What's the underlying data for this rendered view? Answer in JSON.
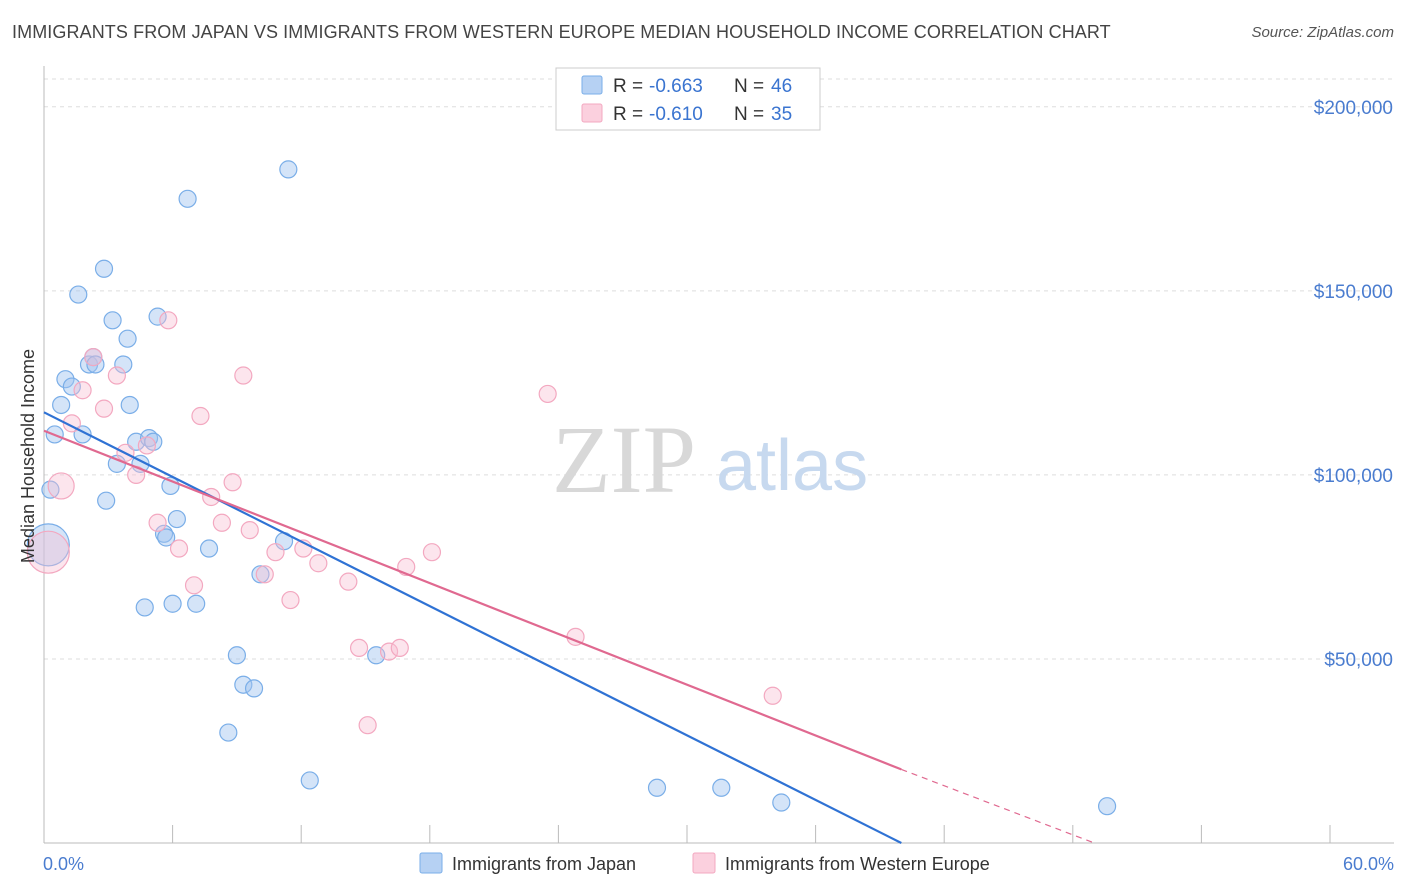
{
  "header": {
    "title": "IMMIGRANTS FROM JAPAN VS IMMIGRANTS FROM WESTERN EUROPE MEDIAN HOUSEHOLD INCOME CORRELATION CHART",
    "source": "Source: ZipAtlas.com"
  },
  "watermark": {
    "zip": "ZIP",
    "atlas": "atlas"
  },
  "colors": {
    "japan": "#7aaee8",
    "japan_line": "#2f72d4",
    "weurope": "#f3a8c0",
    "weurope_line": "#e06990",
    "grid": "#dddddd",
    "tick_text": "#4a7ccf"
  },
  "stats": {
    "r_label": "R =",
    "n_label": "N =",
    "japan": {
      "r": "-0.663",
      "n": "46"
    },
    "weurope": {
      "r": "-0.610",
      "n": "35"
    }
  },
  "chart_data": {
    "type": "scatter",
    "title": "IMMIGRANTS FROM JAPAN VS IMMIGRANTS FROM WESTERN EUROPE MEDIAN HOUSEHOLD INCOME CORRELATION CHART",
    "xlabel": "",
    "ylabel": "Median Household Income",
    "xlim": [
      0,
      60
    ],
    "ylim": [
      0,
      210000
    ],
    "x_tick_labels": [
      "0.0%",
      "60.0%"
    ],
    "y_ticks": [
      50000,
      100000,
      150000,
      200000
    ],
    "y_tick_labels": [
      "$50,000",
      "$100,000",
      "$150,000",
      "$200,000"
    ],
    "grid": true,
    "legend_position": "bottom-center",
    "series": [
      {
        "name": "Immigrants from Japan",
        "color": "#7aaee8",
        "r": -0.663,
        "n": 46,
        "trend": {
          "x": [
            0,
            40
          ],
          "y": [
            117000,
            0
          ]
        },
        "points": [
          [
            0.2,
            81000,
            3
          ],
          [
            0.3,
            96000,
            1
          ],
          [
            0.5,
            111000,
            1
          ],
          [
            0.8,
            119000,
            1
          ],
          [
            1.0,
            126000,
            1
          ],
          [
            1.3,
            124000,
            1
          ],
          [
            1.6,
            149000,
            1
          ],
          [
            1.8,
            111000,
            1
          ],
          [
            2.1,
            130000,
            1
          ],
          [
            2.3,
            132000,
            1
          ],
          [
            2.4,
            130000,
            1
          ],
          [
            2.8,
            156000,
            1
          ],
          [
            2.9,
            93000,
            1
          ],
          [
            3.2,
            142000,
            1
          ],
          [
            3.4,
            103000,
            1
          ],
          [
            3.7,
            130000,
            1
          ],
          [
            3.9,
            137000,
            1
          ],
          [
            4.0,
            119000,
            1
          ],
          [
            4.3,
            109000,
            1
          ],
          [
            4.5,
            103000,
            1
          ],
          [
            4.7,
            64000,
            1
          ],
          [
            4.9,
            110000,
            1
          ],
          [
            5.1,
            109000,
            1
          ],
          [
            5.3,
            143000,
            1
          ],
          [
            5.6,
            84000,
            1
          ],
          [
            5.7,
            83000,
            1
          ],
          [
            5.9,
            97000,
            1
          ],
          [
            6.0,
            65000,
            1
          ],
          [
            6.2,
            88000,
            1
          ],
          [
            6.7,
            175000,
            1
          ],
          [
            7.1,
            65000,
            1
          ],
          [
            7.7,
            80000,
            1
          ],
          [
            8.6,
            30000,
            1
          ],
          [
            9.0,
            51000,
            1
          ],
          [
            9.3,
            43000,
            1
          ],
          [
            9.8,
            42000,
            1
          ],
          [
            10.1,
            73000,
            1
          ],
          [
            11.2,
            82000,
            1
          ],
          [
            11.4,
            183000,
            1
          ],
          [
            12.4,
            17000,
            1
          ],
          [
            15.5,
            51000,
            1
          ],
          [
            28.6,
            15000,
            1
          ],
          [
            31.6,
            15000,
            1
          ],
          [
            34.4,
            11000,
            1
          ],
          [
            49.6,
            10000,
            1
          ]
        ]
      },
      {
        "name": "Immigrants from Western Europe",
        "color": "#f3a8c0",
        "r": -0.61,
        "n": 35,
        "trend": {
          "x": [
            0,
            40
          ],
          "y": [
            112000,
            20000
          ]
        },
        "trend_dashed": {
          "x": [
            40,
            49
          ],
          "y": [
            20000,
            0
          ]
        },
        "points": [
          [
            0.2,
            79000,
            3
          ],
          [
            0.8,
            97000,
            2
          ],
          [
            1.3,
            114000,
            1
          ],
          [
            1.8,
            123000,
            1
          ],
          [
            2.3,
            132000,
            1
          ],
          [
            2.8,
            118000,
            1
          ],
          [
            3.4,
            127000,
            1
          ],
          [
            3.8,
            106000,
            1
          ],
          [
            4.3,
            100000,
            1
          ],
          [
            4.8,
            108000,
            1
          ],
          [
            5.3,
            87000,
            1
          ],
          [
            5.8,
            142000,
            1
          ],
          [
            6.3,
            80000,
            1
          ],
          [
            7.0,
            70000,
            1
          ],
          [
            7.3,
            116000,
            1
          ],
          [
            7.8,
            94000,
            1
          ],
          [
            8.3,
            87000,
            1
          ],
          [
            8.8,
            98000,
            1
          ],
          [
            9.3,
            127000,
            1
          ],
          [
            9.6,
            85000,
            1
          ],
          [
            10.3,
            73000,
            1
          ],
          [
            10.8,
            79000,
            1
          ],
          [
            11.5,
            66000,
            1
          ],
          [
            12.1,
            80000,
            1
          ],
          [
            12.8,
            76000,
            1
          ],
          [
            14.2,
            71000,
            1
          ],
          [
            14.7,
            53000,
            1
          ],
          [
            15.1,
            32000,
            1
          ],
          [
            16.1,
            52000,
            1
          ],
          [
            16.6,
            53000,
            1
          ],
          [
            16.9,
            75000,
            1
          ],
          [
            18.1,
            79000,
            1
          ],
          [
            23.5,
            122000,
            1
          ],
          [
            24.8,
            56000,
            1
          ],
          [
            34.0,
            40000,
            1
          ]
        ]
      }
    ]
  }
}
